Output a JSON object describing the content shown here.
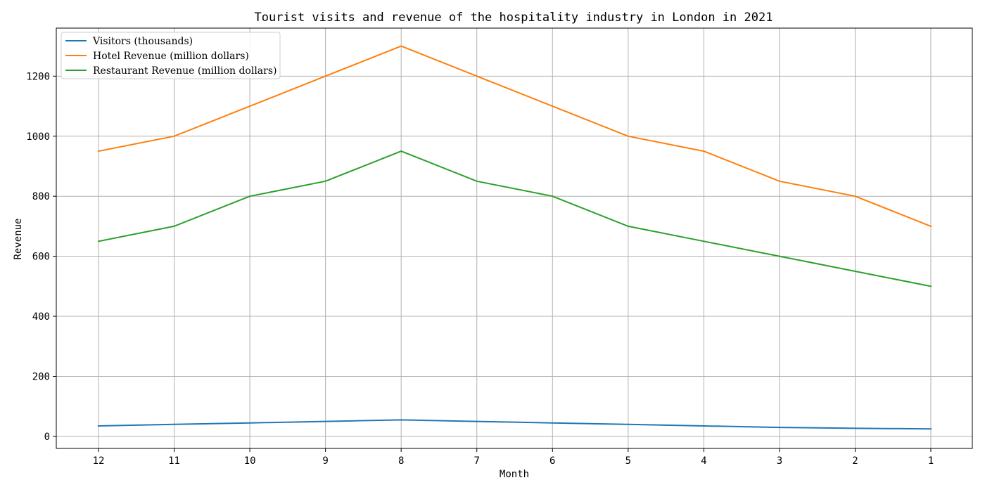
{
  "chart_data": {
    "type": "line",
    "title": "Tourist visits and revenue of the hospitality industry in London in 2021",
    "xlabel": "Month",
    "ylabel": "Revenue",
    "categories": [
      "12",
      "11",
      "10",
      "9",
      "8",
      "7",
      "6",
      "5",
      "4",
      "3",
      "2",
      "1"
    ],
    "ylim": [
      -40,
      1360
    ],
    "yticks": [
      0,
      200,
      400,
      600,
      800,
      1000,
      1200
    ],
    "grid": true,
    "legend_position": "top-left",
    "series": [
      {
        "name": "Visitors (thousands)",
        "color": "#1f77b4",
        "values": [
          35,
          40,
          45,
          50,
          55,
          50,
          45,
          40,
          35,
          30,
          27,
          25
        ]
      },
      {
        "name": "Hotel Revenue (million dollars)",
        "color": "#ff7f0e",
        "values": [
          950,
          1000,
          1100,
          1200,
          1300,
          1200,
          1100,
          1000,
          950,
          850,
          800,
          700
        ]
      },
      {
        "name": "Restaurant Revenue (million dollars)",
        "color": "#2ca02c",
        "values": [
          650,
          700,
          800,
          850,
          950,
          850,
          800,
          700,
          650,
          600,
          550,
          500
        ]
      }
    ]
  }
}
